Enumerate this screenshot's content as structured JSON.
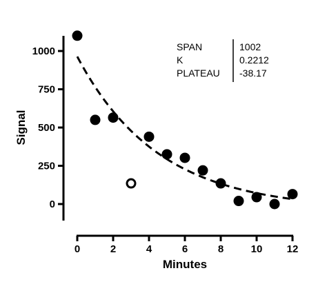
{
  "chart_data": {
    "type": "scatter",
    "xlabel": "Minutes",
    "ylabel": "Signal",
    "x_ticks": [
      0,
      2,
      4,
      6,
      8,
      10,
      12
    ],
    "y_ticks": [
      0,
      250,
      500,
      750,
      1000
    ],
    "xlim": [
      0,
      12
    ],
    "ylim": [
      -100,
      1100
    ],
    "grid": false,
    "legend": "none",
    "series": [
      {
        "marker": "filled-circle",
        "x": [
          0,
          1,
          2,
          4,
          5,
          6,
          7,
          8,
          9,
          10,
          11,
          12
        ],
        "y": [
          1100,
          550,
          565,
          440,
          325,
          302,
          220,
          135,
          20,
          45,
          0,
          65
        ]
      },
      {
        "marker": "open-circle",
        "x": [
          3
        ],
        "y": [
          135
        ]
      }
    ],
    "fit_curve": {
      "style": "dashed",
      "x_range": [
        0,
        12
      ]
    },
    "parameters": [
      {
        "name": "SPAN",
        "value": "1002"
      },
      {
        "name": "K",
        "value": "0.2212"
      },
      {
        "name": "PLATEAU",
        "value": "-38.17"
      }
    ],
    "colors": {
      "marker": "#000000",
      "curve": "#000000",
      "axis": "#000000"
    }
  }
}
